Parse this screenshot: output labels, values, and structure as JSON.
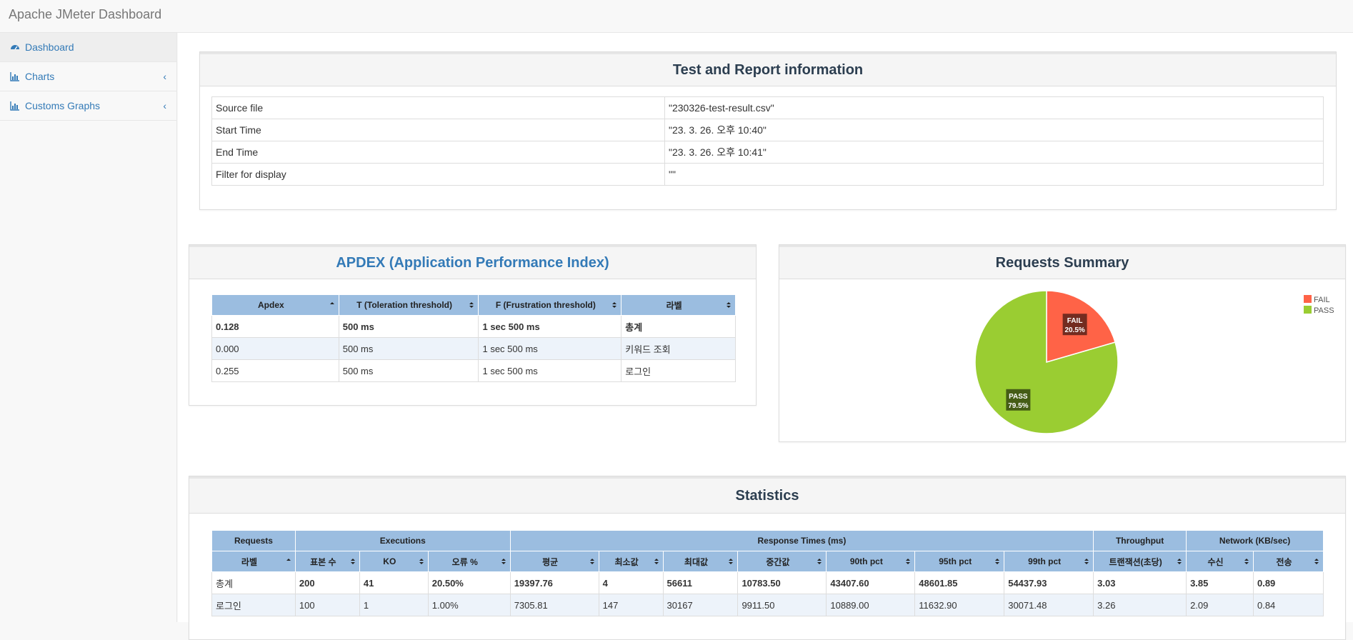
{
  "app": {
    "title": "Apache JMeter Dashboard"
  },
  "sidebar": {
    "items": [
      {
        "label": "Dashboard",
        "icon": "dashboard-icon"
      },
      {
        "label": "Charts",
        "icon": "bar-chart-icon"
      },
      {
        "label": "Customs Graphs",
        "icon": "bar-chart-icon"
      }
    ]
  },
  "report_info": {
    "title": "Test and Report information",
    "rows": [
      {
        "label": "Source file",
        "value": "\"230326-test-result.csv\""
      },
      {
        "label": "Start Time",
        "value": "\"23. 3. 26. 오후 10:40\""
      },
      {
        "label": "End Time",
        "value": "\"23. 3. 26. 오후 10:41\""
      },
      {
        "label": "Filter for display",
        "value": "\"\""
      }
    ]
  },
  "apdex": {
    "title": "APDEX (Application Performance Index)",
    "headers": [
      "Apdex",
      "T (Toleration threshold)",
      "F (Frustration threshold)",
      "라벨"
    ],
    "rows": [
      [
        "0.128",
        "500 ms",
        "1 sec 500 ms",
        "총계"
      ],
      [
        "0.000",
        "500 ms",
        "1 sec 500 ms",
        "키워드 조회"
      ],
      [
        "0.255",
        "500 ms",
        "1 sec 500 ms",
        "로그인"
      ]
    ]
  },
  "requests_summary": {
    "title": "Requests Summary",
    "legend": [
      "FAIL",
      "PASS"
    ],
    "fail_label": "FAIL",
    "fail_pct": "20.5%",
    "pass_label": "PASS",
    "pass_pct": "79.5%",
    "colors": {
      "fail": "#FF6347",
      "pass": "#9ACD32"
    }
  },
  "chart_data": {
    "type": "pie",
    "title": "Requests Summary",
    "categories": [
      "FAIL",
      "PASS"
    ],
    "values": [
      20.5,
      79.5
    ],
    "legend": "top-right"
  },
  "statistics": {
    "title": "Statistics",
    "groups": [
      "Requests",
      "Executions",
      "Response Times (ms)",
      "Throughput",
      "Network (KB/sec)"
    ],
    "headers": [
      "라벨",
      "표본 수",
      "KO",
      "오류 %",
      "평균",
      "최소값",
      "최대값",
      "중간값",
      "90th pct",
      "95th pct",
      "99th pct",
      "트랜잭션(초당)",
      "수신",
      "전송"
    ],
    "rows": [
      [
        "총계",
        "200",
        "41",
        "20.50%",
        "19397.76",
        "4",
        "56611",
        "10783.50",
        "43407.60",
        "48601.85",
        "54437.93",
        "3.03",
        "3.85",
        "0.89"
      ],
      [
        "로그인",
        "100",
        "1",
        "1.00%",
        "7305.81",
        "147",
        "30167",
        "9911.50",
        "10889.00",
        "11632.90",
        "30071.48",
        "3.26",
        "2.09",
        "0.84"
      ]
    ]
  }
}
